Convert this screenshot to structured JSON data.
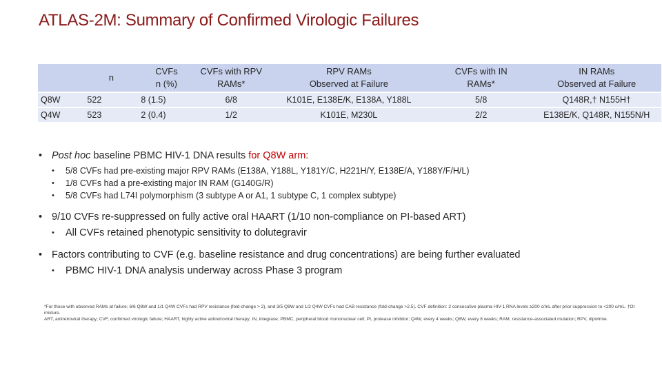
{
  "title": "ATLAS-2M: Summary of Confirmed Virologic Failures",
  "table": {
    "headers": {
      "row": "",
      "n": "n",
      "cvfs_l1": "CVFs",
      "cvfs_l2": "n (%)",
      "rpv_l1": "CVFs with RPV",
      "rpv_l2": "RAMs*",
      "rpvrams_l1": "RPV RAMs",
      "rpvrams_l2": "Observed at Failure",
      "in_l1": "CVFs with IN",
      "in_l2": "RAMs*",
      "inrams_l1": "IN RAMs",
      "inrams_l2": "Observed at Failure"
    },
    "rows": [
      {
        "arm": "Q8W",
        "n": "522",
        "cvfs": "8 (1.5)",
        "rpv": "6/8",
        "rpv_rams": "K101E, E138E/K, E138A, Y188L",
        "in": "5/8",
        "in_rams": "Q148R,† N155H†"
      },
      {
        "arm": "Q4W",
        "n": "523",
        "cvfs": "2 (0.4)",
        "rpv": "1/2",
        "rpv_rams": "K101E, M230L",
        "in": "2/2",
        "in_rams": "E138E/K, Q148R, N155N/H"
      }
    ]
  },
  "bullets": {
    "b1": {
      "italic": "Post hoc",
      "text": " baseline PBMC HIV-1 DNA results ",
      "red": "for Q8W arm",
      "end": ":",
      "subs": [
        "5/8 CVFs had pre-existing major RPV RAMs (E138A, Y188L, Y181Y/C, H221H/Y, E138E/A, Y188Y/F/H/L)",
        "1/8 CVFs had a pre-existing major IN RAM (G140G/R)",
        "5/8 CVFs had L74I polymorphism (3 subtype A or A1, 1 subtype C, 1 complex subtype)"
      ]
    },
    "b2": {
      "text": "9/10 CVFs re-suppressed on fully active oral HAART (1/10 non-compliance on PI-based ART)",
      "subs": [
        "All CVFs retained phenotypic sensitivity to dolutegravir"
      ]
    },
    "b3": {
      "text": "Factors contributing to CVF (e.g. baseline resistance and drug concentrations) are being further evaluated",
      "subs": [
        "PBMC HIV-1 DNA analysis underway across Phase 3 program"
      ]
    }
  },
  "footnotes": {
    "line1": "*For those with observed RAMs at failure; 6/6 Q8W and 1/1 Q4W CVFs had RPV resistance (fold-change > 2), and 3/5 Q8W and 1/2 Q4W CVFs had CAB resistance (fold-change >2.5). CVF definition: 2 consecutive plasma HIV-1 RNA levels ≥200 c/mL after prior suppression to <200 c/mL. †Or mixture.",
    "line2": "ART, antiretroviral therapy; CVF, confirmed virologic failure; HAART, highly active antiretroviral therapy; IN, integrase; PBMC, peripheral blood mononuclear cell; PI, protease inhibitor; Q4W, every 4 weeks; Q8W, every 8 weeks; RAM, resistance-associated mutation; RPV, rilpivirine."
  }
}
